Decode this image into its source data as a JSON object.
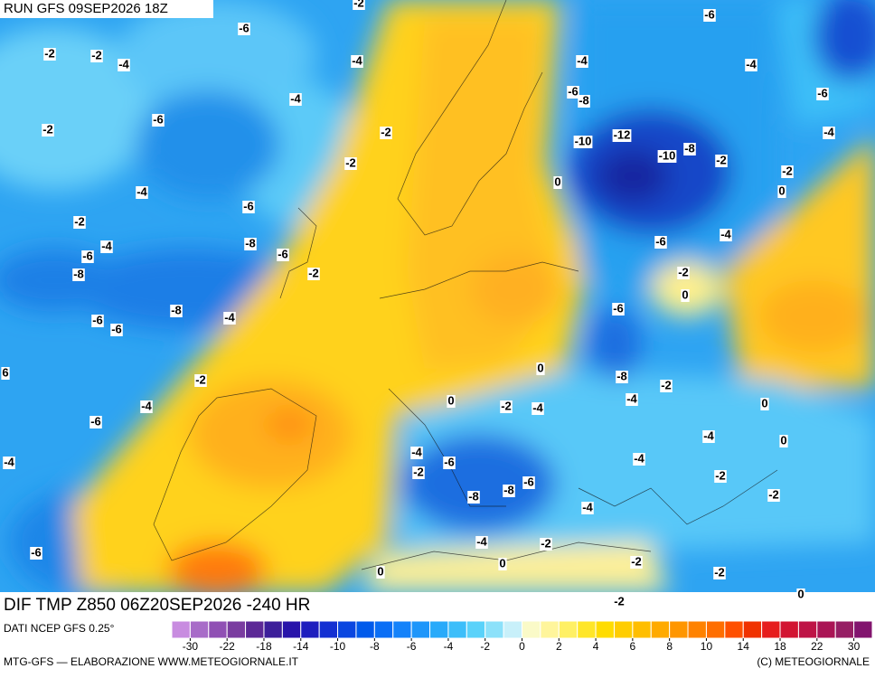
{
  "header": {
    "run": "RUN GFS 09SEP2026 18Z"
  },
  "map": {
    "contour_labels": [
      -2,
      -2,
      -4,
      -6,
      -4,
      -4,
      -6,
      -2,
      -2,
      -2,
      -4,
      -6,
      -2,
      -4,
      -6,
      -8,
      -6,
      -8,
      -2,
      -8,
      -4,
      -6,
      -6,
      -2,
      -4,
      -6,
      -4,
      -6,
      -6,
      -4,
      -4,
      -6,
      -8,
      -6,
      -4,
      -10,
      -12,
      -10,
      -8,
      -2,
      -2,
      0,
      0,
      -6,
      -4,
      -2,
      0,
      -6,
      0,
      -8,
      -2,
      -4,
      0,
      0,
      -2,
      -4,
      -4,
      0,
      -4,
      -6,
      -2,
      -4,
      -2,
      -6,
      -8,
      -8,
      -2,
      -4,
      -4,
      -2,
      0,
      0,
      -2,
      -2,
      0,
      -2,
      6,
      -2
    ]
  },
  "product": "DIF TMP Z850 06Z20SEP2026 -240 HR",
  "source": "DATI NCEP GFS 0.25°",
  "legend": {
    "colors": [
      "#c88ce0",
      "#a86cc8",
      "#9050b4",
      "#7a3ca0",
      "#5c2896",
      "#3c1e9a",
      "#2814aa",
      "#1e1ebe",
      "#1430d2",
      "#0a46e0",
      "#005aeb",
      "#0a6ef5",
      "#1482fa",
      "#1e96fa",
      "#28aafa",
      "#3cbefa",
      "#5ad2fa",
      "#8ce1fa",
      "#c8f0fa",
      "#fafac8",
      "#fff59b",
      "#fff064",
      "#ffe628",
      "#ffdc00",
      "#ffcd00",
      "#ffbe00",
      "#ffaa00",
      "#ff9600",
      "#ff8200",
      "#ff6e00",
      "#ff5000",
      "#f03200",
      "#e61e1e",
      "#d21432",
      "#be1446",
      "#aa1455",
      "#961e64",
      "#82146e"
    ],
    "labels": [
      -30,
      -22,
      -18,
      -14,
      -10,
      -8,
      -6,
      -4,
      -2,
      0,
      2,
      4,
      6,
      8,
      10,
      14,
      18,
      22,
      30
    ]
  },
  "footer": {
    "left": "MTG-GFS — ELABORAZIONE WWW.METEOGIORNALE.IT",
    "right": "(C) METEOGIORNALE"
  }
}
